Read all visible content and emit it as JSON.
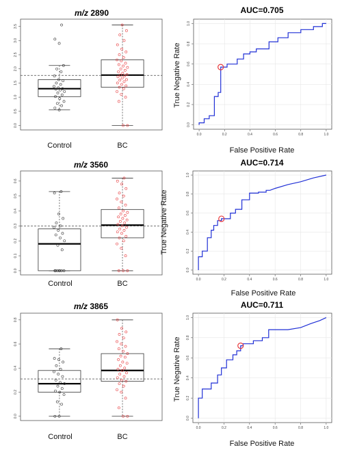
{
  "chart_data": [
    {
      "type": "box",
      "panel": "m/z 2890 boxplot",
      "title_prefix": "m/z",
      "title_value": "2890",
      "categories": [
        "Control",
        "BC"
      ],
      "yticks": [
        "0.0",
        "0.5",
        "1.0",
        "1.5",
        "2.0",
        "2.5",
        "3.0",
        "3.5"
      ],
      "ylim": [
        0,
        3.6
      ],
      "cutoff": 1.77,
      "boxes": [
        {
          "name": "Control",
          "min": 0.55,
          "q1": 1.02,
          "median": 1.3,
          "q3": 1.62,
          "max": 2.12
        },
        {
          "name": "BC",
          "min": 0.0,
          "q1": 1.35,
          "median": 1.78,
          "q3": 2.32,
          "max": 3.55
        }
      ],
      "points": [
        [
          0.55,
          0.62,
          0.7,
          0.78,
          0.85,
          0.95,
          1.02,
          1.08,
          1.15,
          1.2,
          1.25,
          1.28,
          1.3,
          1.33,
          1.38,
          1.45,
          1.5,
          1.58,
          1.62,
          1.75,
          1.9,
          2.0,
          2.12,
          2.9,
          3.05,
          3.55
        ],
        [
          0.0,
          0.0,
          0.85,
          1.0,
          1.1,
          1.2,
          1.3,
          1.35,
          1.4,
          1.45,
          1.5,
          1.55,
          1.6,
          1.62,
          1.68,
          1.72,
          1.75,
          1.78,
          1.8,
          1.85,
          1.9,
          1.95,
          2.0,
          2.05,
          2.1,
          2.15,
          2.2,
          2.28,
          2.32,
          2.4,
          2.5,
          2.6,
          2.7,
          2.85,
          3.0,
          3.2,
          3.35,
          3.55
        ]
      ],
      "colors": [
        "#333333",
        "#e8383b"
      ]
    },
    {
      "type": "line",
      "panel": "m/z 2890 ROC",
      "title": "AUC=0.705",
      "xlabel": "False Positive Rate",
      "ylabel": "True Negative Rate",
      "xticks": [
        "0.0",
        "0.2",
        "0.4",
        "0.6",
        "0.8",
        "1.0"
      ],
      "yticks": [
        "0.0",
        "0.2",
        "0.4",
        "0.6",
        "0.8",
        "1.0"
      ],
      "xlim": [
        0,
        1
      ],
      "ylim": [
        0,
        1
      ],
      "line_color": "#1f2fd6",
      "marker": [
        0.17,
        0.57
      ],
      "roc": [
        [
          0,
          0
        ],
        [
          0,
          0.02
        ],
        [
          0.04,
          0.02
        ],
        [
          0.04,
          0.06
        ],
        [
          0.08,
          0.06
        ],
        [
          0.08,
          0.09
        ],
        [
          0.12,
          0.09
        ],
        [
          0.12,
          0.28
        ],
        [
          0.15,
          0.28
        ],
        [
          0.15,
          0.32
        ],
        [
          0.17,
          0.32
        ],
        [
          0.17,
          0.57
        ],
        [
          0.22,
          0.57
        ],
        [
          0.22,
          0.6
        ],
        [
          0.3,
          0.6
        ],
        [
          0.3,
          0.65
        ],
        [
          0.35,
          0.65
        ],
        [
          0.35,
          0.7
        ],
        [
          0.4,
          0.7
        ],
        [
          0.4,
          0.72
        ],
        [
          0.45,
          0.72
        ],
        [
          0.45,
          0.75
        ],
        [
          0.55,
          0.75
        ],
        [
          0.55,
          0.82
        ],
        [
          0.62,
          0.82
        ],
        [
          0.62,
          0.86
        ],
        [
          0.7,
          0.86
        ],
        [
          0.7,
          0.91
        ],
        [
          0.8,
          0.91
        ],
        [
          0.8,
          0.94
        ],
        [
          0.9,
          0.94
        ],
        [
          0.9,
          0.97
        ],
        [
          0.97,
          0.97
        ],
        [
          0.97,
          1.0
        ],
        [
          1,
          1.0
        ]
      ]
    },
    {
      "type": "box",
      "panel": "m/z 3560 boxplot",
      "title_prefix": "m/z",
      "title_value": "3560",
      "categories": [
        "Control",
        "BC"
      ],
      "yticks": [
        "0.0",
        "0.1",
        "0.2",
        "0.3",
        "0.4",
        "0.5",
        "0.6"
      ],
      "ylim": [
        0,
        0.64
      ],
      "cutoff": 0.3,
      "boxes": [
        {
          "name": "Control",
          "min": 0.0,
          "q1": 0.0,
          "median": 0.18,
          "q3": 0.28,
          "max": 0.53
        },
        {
          "name": "BC",
          "min": 0.0,
          "q1": 0.22,
          "median": 0.305,
          "q3": 0.41,
          "max": 0.62
        }
      ],
      "points": [
        [
          0.0,
          0.0,
          0.0,
          0.0,
          0.0,
          0.0,
          0.0,
          0.14,
          0.17,
          0.2,
          0.22,
          0.24,
          0.25,
          0.27,
          0.29,
          0.3,
          0.32,
          0.35,
          0.38,
          0.52,
          0.53
        ],
        [
          0.0,
          0.0,
          0.0,
          0.1,
          0.15,
          0.18,
          0.2,
          0.22,
          0.23,
          0.25,
          0.26,
          0.27,
          0.28,
          0.29,
          0.3,
          0.31,
          0.32,
          0.33,
          0.34,
          0.35,
          0.36,
          0.37,
          0.38,
          0.39,
          0.4,
          0.42,
          0.44,
          0.46,
          0.48,
          0.5,
          0.52,
          0.55,
          0.58,
          0.6,
          0.62
        ]
      ],
      "colors": [
        "#333333",
        "#e8383b"
      ]
    },
    {
      "type": "line",
      "panel": "m/z 3560 ROC",
      "title": "AUC=0.714",
      "xlabel": "False Positive Rate",
      "ylabel": "True Negative Rate",
      "xticks": [
        "0.0",
        "0.2",
        "0.4",
        "0.6",
        "0.8",
        "1.0"
      ],
      "yticks": [
        "0.0",
        "0.2",
        "0.4",
        "0.6",
        "0.8",
        "1.0"
      ],
      "xlim": [
        0,
        1
      ],
      "ylim": [
        0,
        1
      ],
      "line_color": "#1f2fd6",
      "marker": [
        0.18,
        0.54
      ],
      "roc": [
        [
          0,
          0
        ],
        [
          0,
          0.14
        ],
        [
          0.03,
          0.14
        ],
        [
          0.03,
          0.2
        ],
        [
          0.07,
          0.2
        ],
        [
          0.07,
          0.34
        ],
        [
          0.1,
          0.34
        ],
        [
          0.1,
          0.42
        ],
        [
          0.12,
          0.42
        ],
        [
          0.12,
          0.47
        ],
        [
          0.15,
          0.47
        ],
        [
          0.15,
          0.52
        ],
        [
          0.18,
          0.52
        ],
        [
          0.18,
          0.54
        ],
        [
          0.25,
          0.54
        ],
        [
          0.25,
          0.6
        ],
        [
          0.29,
          0.6
        ],
        [
          0.29,
          0.64
        ],
        [
          0.34,
          0.64
        ],
        [
          0.34,
          0.74
        ],
        [
          0.4,
          0.74
        ],
        [
          0.4,
          0.81
        ],
        [
          0.47,
          0.81
        ],
        [
          0.47,
          0.82
        ],
        [
          0.53,
          0.82
        ],
        [
          0.53,
          0.84
        ],
        [
          0.56,
          0.84
        ],
        [
          0.6,
          0.86
        ],
        [
          0.7,
          0.9
        ],
        [
          0.8,
          0.93
        ],
        [
          0.9,
          0.97
        ],
        [
          1,
          1.0
        ]
      ]
    },
    {
      "type": "box",
      "panel": "m/z 3865 boxplot",
      "title_prefix": "m/z",
      "title_value": "3865",
      "categories": [
        "Control",
        "BC"
      ],
      "yticks": [
        "0.0",
        "0.2",
        "0.4",
        "0.6",
        "0.8"
      ],
      "ylim": [
        0,
        0.82
      ],
      "cutoff": 0.31,
      "boxes": [
        {
          "name": "Control",
          "min": 0.0,
          "q1": 0.2,
          "median": 0.27,
          "q3": 0.38,
          "max": 0.56
        },
        {
          "name": "BC",
          "min": 0.0,
          "q1": 0.29,
          "median": 0.38,
          "q3": 0.52,
          "max": 0.8
        }
      ],
      "points": [
        [
          0.0,
          0.0,
          0.1,
          0.12,
          0.18,
          0.2,
          0.21,
          0.23,
          0.25,
          0.27,
          0.28,
          0.3,
          0.33,
          0.35,
          0.37,
          0.39,
          0.42,
          0.45,
          0.47,
          0.48,
          0.56
        ],
        [
          0.0,
          0.0,
          0.07,
          0.15,
          0.2,
          0.22,
          0.25,
          0.27,
          0.29,
          0.3,
          0.32,
          0.33,
          0.35,
          0.36,
          0.38,
          0.39,
          0.4,
          0.42,
          0.44,
          0.45,
          0.47,
          0.49,
          0.5,
          0.52,
          0.54,
          0.56,
          0.58,
          0.6,
          0.62,
          0.65,
          0.68,
          0.7,
          0.73,
          0.8
        ]
      ],
      "colors": [
        "#333333",
        "#e8383b"
      ]
    },
    {
      "type": "line",
      "panel": "m/z 3865 ROC",
      "title": "AUC=0.711",
      "xlabel": "False Positive Rate",
      "ylabel": "True Negative Rate",
      "xticks": [
        "0.0",
        "0.2",
        "0.4",
        "0.6",
        "0.8",
        "1.0"
      ],
      "yticks": [
        "0.0",
        "0.2",
        "0.4",
        "0.6",
        "0.8",
        "1.0"
      ],
      "xlim": [
        0,
        1
      ],
      "ylim": [
        0,
        1
      ],
      "line_color": "#1f2fd6",
      "marker": [
        0.33,
        0.72
      ],
      "roc": [
        [
          0,
          0
        ],
        [
          0,
          0.2
        ],
        [
          0.03,
          0.2
        ],
        [
          0.03,
          0.29
        ],
        [
          0.1,
          0.29
        ],
        [
          0.1,
          0.35
        ],
        [
          0.15,
          0.35
        ],
        [
          0.15,
          0.43
        ],
        [
          0.18,
          0.43
        ],
        [
          0.18,
          0.5
        ],
        [
          0.22,
          0.5
        ],
        [
          0.22,
          0.58
        ],
        [
          0.27,
          0.58
        ],
        [
          0.27,
          0.63
        ],
        [
          0.3,
          0.63
        ],
        [
          0.3,
          0.67
        ],
        [
          0.33,
          0.67
        ],
        [
          0.33,
          0.72
        ],
        [
          0.35,
          0.72
        ],
        [
          0.35,
          0.74
        ],
        [
          0.43,
          0.74
        ],
        [
          0.43,
          0.77
        ],
        [
          0.5,
          0.77
        ],
        [
          0.5,
          0.8
        ],
        [
          0.55,
          0.8
        ],
        [
          0.55,
          0.88
        ],
        [
          0.7,
          0.88
        ],
        [
          0.8,
          0.9
        ],
        [
          0.88,
          0.94
        ],
        [
          0.95,
          0.97
        ],
        [
          1,
          1.0
        ]
      ]
    }
  ]
}
